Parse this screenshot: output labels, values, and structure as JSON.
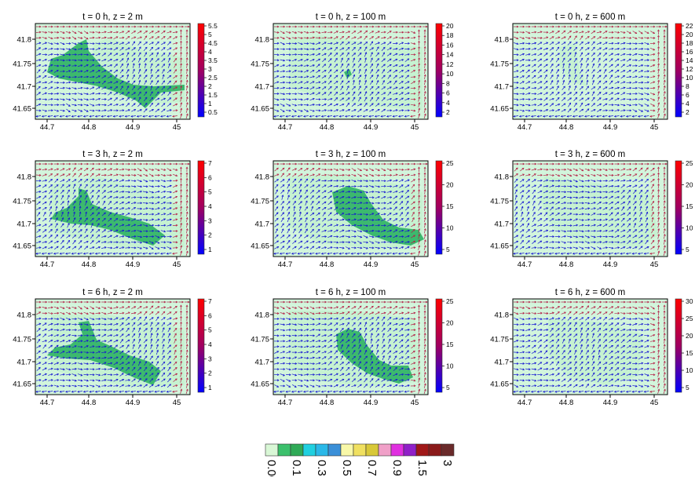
{
  "chart_data": [
    {
      "type": "heatmap",
      "title": "t = 0 h,  z = 2 m",
      "x_ticks": [
        "44.7",
        "44.8",
        "44.9",
        "45"
      ],
      "y_ticks": [
        "41.8",
        "41.75",
        "41.7",
        "41.65"
      ],
      "colorbar_ticks": [
        "5.5",
        "5",
        "4.5",
        "4",
        "3.5",
        "3",
        "2.5",
        "2",
        "1.5",
        "1",
        "0.5"
      ],
      "colorbar_range": [
        0.5,
        5.5
      ]
    },
    {
      "type": "heatmap",
      "title": "t = 0 h,  z = 100 m",
      "x_ticks": [
        "44.7",
        "44.8",
        "44.9",
        "45"
      ],
      "y_ticks": [
        "41.8",
        "41.75",
        "41.7",
        "41.65"
      ],
      "colorbar_ticks": [
        "20",
        "18",
        "16",
        "14",
        "12",
        "10",
        "8",
        "6",
        "4",
        "2"
      ],
      "colorbar_range": [
        2,
        20
      ]
    },
    {
      "type": "heatmap",
      "title": "t = 0 h,  z = 600 m",
      "x_ticks": [
        "44.7",
        "44.8",
        "44.9",
        "45"
      ],
      "y_ticks": [
        "41.8",
        "41.75",
        "41.7",
        "41.65"
      ],
      "colorbar_ticks": [
        "22",
        "20",
        "18",
        "16",
        "14",
        "12",
        "10",
        "8",
        "6",
        "4",
        "2"
      ],
      "colorbar_range": [
        2,
        22
      ]
    },
    {
      "type": "heatmap",
      "title": "t = 3 h,  z = 2 m",
      "x_ticks": [
        "44.7",
        "44.8",
        "44.9",
        "45"
      ],
      "y_ticks": [
        "41.8",
        "41.75",
        "41.7",
        "41.65"
      ],
      "colorbar_ticks": [
        "7",
        "6",
        "5",
        "4",
        "3",
        "2",
        "1"
      ],
      "colorbar_range": [
        1,
        7
      ]
    },
    {
      "type": "heatmap",
      "title": "t = 3 h,  z = 100 m",
      "x_ticks": [
        "44.7",
        "44.8",
        "44.9",
        "45"
      ],
      "y_ticks": [
        "41.8",
        "41.75",
        "41.7",
        "41.65"
      ],
      "colorbar_ticks": [
        "25",
        "20",
        "15",
        "10",
        "5"
      ],
      "colorbar_range": [
        5,
        25
      ]
    },
    {
      "type": "heatmap",
      "title": "t = 3 h,  z = 600 m",
      "x_ticks": [
        "44.7",
        "44.8",
        "44.9",
        "45"
      ],
      "y_ticks": [
        "41.8",
        "41.75",
        "41.7",
        "41.65"
      ],
      "colorbar_ticks": [
        "25",
        "20",
        "15",
        "10",
        "5"
      ],
      "colorbar_range": [
        5,
        25
      ]
    },
    {
      "type": "heatmap",
      "title": "t = 6 h,  z = 2 m",
      "x_ticks": [
        "44.7",
        "44.8",
        "44.9",
        "45"
      ],
      "y_ticks": [
        "41.8",
        "41.75",
        "41.7",
        "41.65"
      ],
      "colorbar_ticks": [
        "7",
        "6",
        "5",
        "4",
        "3",
        "2",
        "1"
      ],
      "colorbar_range": [
        1,
        7
      ]
    },
    {
      "type": "heatmap",
      "title": "t = 6 h,  z = 100 m",
      "x_ticks": [
        "44.7",
        "44.8",
        "44.9",
        "45"
      ],
      "y_ticks": [
        "41.8",
        "41.75",
        "41.7",
        "41.65"
      ],
      "colorbar_ticks": [
        "25",
        "20",
        "15",
        "10",
        "5"
      ],
      "colorbar_range": [
        5,
        25
      ]
    },
    {
      "type": "heatmap",
      "title": "t = 6 h,  z = 600 m",
      "x_ticks": [
        "44.7",
        "44.8",
        "44.9",
        "45"
      ],
      "y_ticks": [
        "41.8",
        "41.75",
        "41.7",
        "41.65"
      ],
      "colorbar_ticks": [
        "30",
        "25",
        "20",
        "15",
        "10",
        "5"
      ],
      "colorbar_range": [
        5,
        30
      ]
    }
  ],
  "legend": {
    "colors": [
      "#d9f7d6",
      "#3cc06c",
      "#2faa57",
      "#20d0e0",
      "#2ab8e8",
      "#3a8fd8",
      "#f8f8a8",
      "#f0e060",
      "#d8c838",
      "#f0a0c8",
      "#e030e0",
      "#9020c8",
      "#a01818",
      "#8a1a1a",
      "#6a2a2a"
    ],
    "labels": [
      "0.001",
      "0.1",
      "0.3",
      "0.5",
      "0.7",
      "0.9",
      "1.5",
      "3"
    ]
  },
  "colors": {
    "field_light": "#d2f5dc",
    "plume": "#3cb96e",
    "arrow_a": "#1515d2",
    "arrow_b": "#b41e46",
    "colorbar_top": "#ff0000",
    "colorbar_bottom": "#0000ff"
  }
}
